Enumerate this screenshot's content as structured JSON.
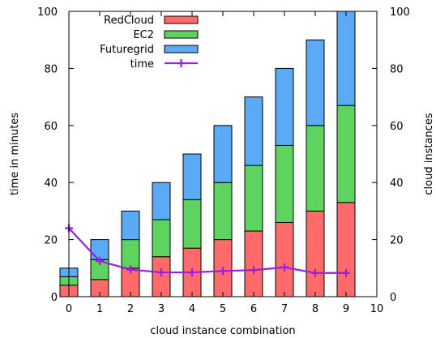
{
  "chart_data": {
    "type": "bar",
    "stacked": true,
    "x": [
      0,
      1,
      2,
      3,
      4,
      5,
      6,
      7,
      8,
      9
    ],
    "xlim": [
      0,
      10
    ],
    "xticks": [
      0,
      1,
      2,
      3,
      4,
      5,
      6,
      7,
      8,
      9,
      10
    ],
    "xlabel": "cloud instance combination",
    "ylabel_left": "time in minutes",
    "ylabel_right": "cloud instances",
    "ylim_left": [
      0,
      100
    ],
    "ylim_right": [
      0,
      100
    ],
    "yticks_left": [
      0,
      20,
      40,
      60,
      80,
      100
    ],
    "yticks_right": [
      0,
      20,
      40,
      60,
      80,
      100
    ],
    "grid": false,
    "legend_position": "top-left",
    "series": [
      {
        "name": "RedCloud",
        "kind": "bar",
        "axis": "right",
        "color": "#ff6b6b",
        "values": [
          4,
          6,
          10,
          14,
          17,
          20,
          23,
          26,
          30,
          33
        ]
      },
      {
        "name": "EC2",
        "kind": "bar",
        "axis": "right",
        "color": "#5fd35f",
        "values": [
          3,
          7,
          10,
          13,
          17,
          20,
          23,
          27,
          30,
          34
        ]
      },
      {
        "name": "Futuregrid",
        "kind": "bar",
        "axis": "right",
        "color": "#5aaaf5",
        "values": [
          3,
          7,
          10,
          13,
          16,
          20,
          24,
          27,
          30,
          33
        ]
      },
      {
        "name": "time",
        "kind": "line",
        "axis": "left",
        "color": "#9a1fe0",
        "values": [
          24,
          12.5,
          9.5,
          8.5,
          8.5,
          9,
          9.3,
          10.3,
          8.3,
          8.3
        ]
      }
    ]
  }
}
